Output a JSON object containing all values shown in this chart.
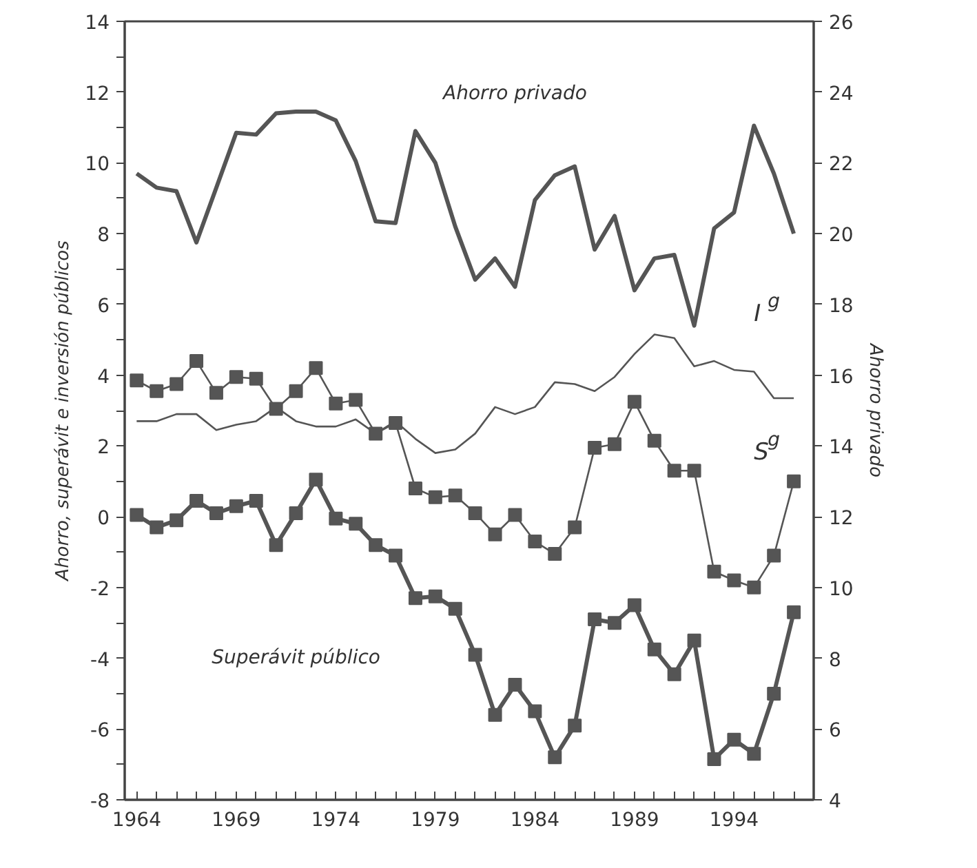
{
  "chart_data": {
    "type": "line",
    "ylabel": "Ahorro, superávit e inversión públicos",
    "y2label": "Ahorro privado",
    "x": [
      1964,
      1965,
      1966,
      1967,
      1968,
      1969,
      1970,
      1971,
      1972,
      1973,
      1974,
      1975,
      1976,
      1977,
      1978,
      1979,
      1980,
      1981,
      1982,
      1983,
      1984,
      1985,
      1986,
      1987,
      1988,
      1989,
      1990,
      1991,
      1992,
      1993,
      1994,
      1995,
      1996,
      1997
    ],
    "series": [
      {
        "name": "Ahorro privado",
        "color": "#555555",
        "axis": "y2",
        "marker": "none",
        "values": [
          21.7,
          21.3,
          21.2,
          19.75,
          21.3,
          22.85,
          22.8,
          23.4,
          23.45,
          23.45,
          23.2,
          22.05,
          20.35,
          20.3,
          22.9,
          22.0,
          20.2,
          18.7,
          19.3,
          18.5,
          20.95,
          21.65,
          21.9,
          19.55,
          20.5,
          18.4,
          19.3,
          19.4,
          17.4,
          20.15,
          20.6,
          23.05,
          21.7,
          20.0
        ]
      },
      {
        "name": "I$^{g}$",
        "color": "#555555",
        "marker": "none",
        "values": [
          2.7,
          2.7,
          2.9,
          2.9,
          2.45,
          2.6,
          2.7,
          3.1,
          2.7,
          2.55,
          2.55,
          2.75,
          2.35,
          2.7,
          2.2,
          1.8,
          1.9,
          2.35,
          3.1,
          2.9,
          3.1,
          3.8,
          3.75,
          3.55,
          3.95,
          4.6,
          5.15,
          5.05,
          4.25,
          4.4,
          4.15,
          4.1,
          3.35,
          3.35
        ]
      },
      {
        "name": "S$^{g}$",
        "color": "#555555",
        "marker": "square",
        "values": [
          3.85,
          3.55,
          3.75,
          4.4,
          3.5,
          3.95,
          3.9,
          3.05,
          3.55,
          4.2,
          3.2,
          3.3,
          2.35,
          2.65,
          0.8,
          0.55,
          0.6,
          0.1,
          -0.5,
          0.05,
          -0.7,
          -1.05,
          -0.3,
          1.95,
          2.05,
          3.25,
          2.15,
          1.3,
          1.3,
          -1.55,
          -1.8,
          -2.0,
          -1.1,
          1.0
        ]
      },
      {
        "name": "Superávit público",
        "color": "#555555",
        "marker": "square",
        "values": [
          0.05,
          -0.3,
          -0.1,
          0.45,
          0.1,
          0.3,
          0.45,
          -0.8,
          0.1,
          1.05,
          -0.05,
          -0.2,
          -0.8,
          -1.1,
          -2.3,
          -2.25,
          -2.6,
          -3.9,
          -5.6,
          -4.75,
          -5.5,
          -6.8,
          -5.9,
          -2.9,
          -3.0,
          -2.5,
          -3.75,
          -4.45,
          -3.5,
          -6.85,
          -6.3,
          -6.7,
          -5.0,
          -2.7
        ]
      }
    ],
    "xlim": [
      1963.4,
      1998
    ],
    "xticks": [
      1964,
      {
        "value": 1965,
        "label": null
      },
      {
        "value": 1966,
        "label": null
      },
      {
        "value": 1967,
        "label": null
      },
      {
        "value": 1968,
        "label": null
      },
      1969,
      {
        "value": 1970,
        "label": null
      },
      {
        "value": 1971,
        "label": null
      },
      {
        "value": 1972,
        "label": null
      },
      {
        "value": 1973,
        "label": null
      },
      1974,
      {
        "value": 1975,
        "label": null
      },
      {
        "value": 1976,
        "label": null
      },
      {
        "value": 1977,
        "label": null
      },
      {
        "value": 1978,
        "label": null
      },
      1979,
      {
        "value": 1980,
        "label": null
      },
      {
        "value": 1981,
        "label": null
      },
      {
        "value": 1982,
        "label": null
      },
      {
        "value": 1983,
        "label": null
      },
      1984,
      {
        "value": 1985,
        "label": null
      },
      {
        "value": 1986,
        "label": null
      },
      {
        "value": 1987,
        "label": null
      },
      {
        "value": 1988,
        "label": null
      },
      1989,
      {
        "value": 1990,
        "label": null
      },
      {
        "value": 1991,
        "label": null
      },
      {
        "value": 1992,
        "label": null
      },
      {
        "value": 1993,
        "label": null
      },
      1994,
      {
        "value": 1995,
        "label": null
      },
      {
        "value": 1996,
        "label": null
      },
      {
        "value": 1997,
        "label": null
      }
    ],
    "ylim": [
      -8,
      14
    ],
    "yticks": [
      -8,
      {
        "value": -7,
        "label": null
      },
      -6,
      {
        "value": -5,
        "label": null
      },
      -4,
      {
        "value": -3,
        "label": null
      },
      -2,
      {
        "value": -1,
        "label": null
      },
      0,
      {
        "value": 1,
        "label": null
      },
      2,
      {
        "value": 3,
        "label": null
      },
      4,
      {
        "value": 5,
        "label": null
      },
      6,
      {
        "value": 7,
        "label": null
      },
      8,
      {
        "value": 9,
        "label": null
      },
      10,
      {
        "value": 11,
        "label": null
      },
      12,
      {
        "value": 13,
        "label": null
      },
      14
    ],
    "y2lim": [
      4,
      26
    ],
    "y2ticks": [
      4,
      6,
      8,
      10,
      12,
      14,
      16,
      18,
      20,
      22,
      24,
      26
    ],
    "grid": false,
    "legend": false
  }
}
